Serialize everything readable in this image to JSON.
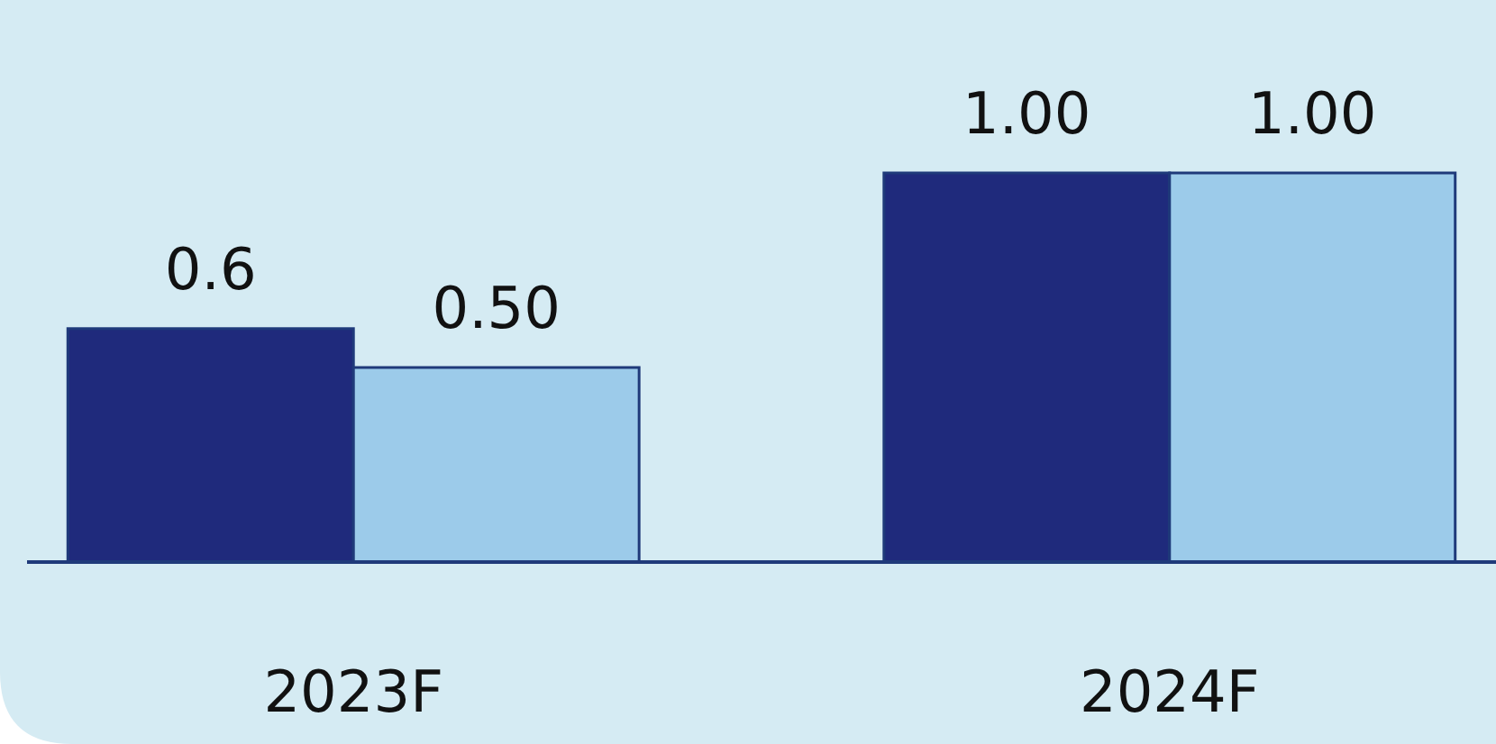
{
  "chart_data": {
    "type": "bar",
    "categories": [
      "2023F",
      "2024F"
    ],
    "series": [
      {
        "color": "#1f2a7c",
        "values": [
          0.6,
          1.0
        ],
        "value_labels": [
          "0.6",
          "1.00"
        ]
      },
      {
        "color": "#9ccbea",
        "values": [
          0.5,
          1.0
        ],
        "value_labels": [
          "0.50",
          "1.00"
        ]
      }
    ]
  }
}
